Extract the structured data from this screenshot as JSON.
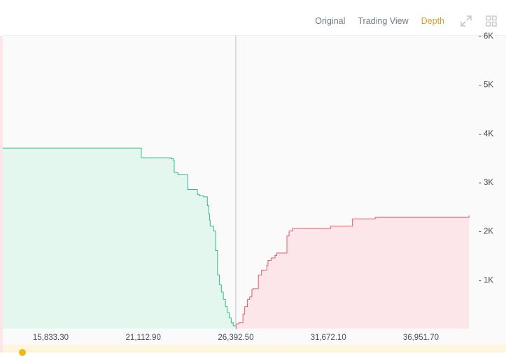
{
  "tabs": [
    {
      "label": "Original",
      "active": false
    },
    {
      "label": "Trading View",
      "active": false
    },
    {
      "label": "Depth",
      "active": true
    }
  ],
  "icons": {
    "expand": "expand-icon",
    "grid": "grid-layout-icon"
  },
  "colors": {
    "bid": "#2ebd85",
    "bid_fill": "#e3f7ee",
    "ask": "#e55c6a",
    "ask_fill": "#fde6e9",
    "active_tab": "#d49e2a"
  },
  "chart_data": {
    "type": "area",
    "mid_price": 26392.5,
    "xlim": [
      13100,
      40050
    ],
    "ylim": [
      0,
      6000
    ],
    "x_ticks": [
      "15,833.30",
      "21,112.90",
      "26,392.50",
      "31,672.10",
      "36,951.70"
    ],
    "x_tick_values": [
      15833.3,
      21112.9,
      26392.5,
      31672.1,
      36951.7
    ],
    "y_ticks": [
      "- 6K",
      "- 5K",
      "- 4K",
      "- 3K",
      "- 2K",
      "- 1K"
    ],
    "y_tick_values": [
      6000,
      5000,
      4000,
      3000,
      2000,
      1000
    ],
    "series": [
      {
        "side": "bid",
        "x": [
          13100,
          20950,
          21000,
          22700,
          22830,
          22880,
          23090,
          23650,
          24200,
          24300,
          24550,
          24770,
          24850,
          24900,
          24930,
          25130,
          25240,
          25350,
          25460,
          25570,
          25680,
          25800,
          25900,
          26020,
          26130,
          26250,
          26392.5
        ],
        "y": [
          3700,
          3700,
          3500,
          3480,
          3450,
          3200,
          3150,
          2850,
          2750,
          2720,
          2700,
          2520,
          2350,
          2220,
          2100,
          2000,
          1600,
          1100,
          900,
          750,
          600,
          450,
          330,
          220,
          120,
          60,
          0
        ]
      },
      {
        "side": "ask",
        "x": [
          26392.5,
          26420,
          26570,
          26800,
          26900,
          27050,
          27180,
          27310,
          27380,
          27680,
          27860,
          28160,
          28230,
          28420,
          28630,
          28730,
          29310,
          29430,
          29630,
          31800,
          33050,
          34350,
          39700
        ],
        "y": [
          0,
          100,
          120,
          300,
          450,
          600,
          650,
          800,
          820,
          1100,
          1200,
          1300,
          1400,
          1450,
          1500,
          1550,
          1900,
          2000,
          2050,
          2100,
          2250,
          2280,
          2320
        ]
      }
    ]
  }
}
